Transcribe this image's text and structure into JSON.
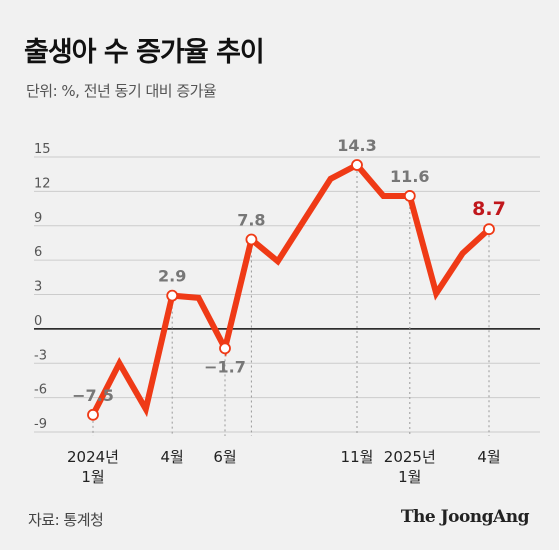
{
  "header": {
    "title": "출생아 수 증가율 추이",
    "subtitle": "단위: %, 전년 동기 대비 증가율"
  },
  "footer": {
    "source": "자료: 통계청",
    "brand": "The JoongAng"
  },
  "colors": {
    "background": "#f1f1f1",
    "line": "#ef3a16",
    "highlight_label": "#c0171c",
    "label": "#777777",
    "axis": "#111111",
    "grid": "#cccccc"
  },
  "chart_data": {
    "type": "line",
    "title": "출생아 수 증가율 추이",
    "subtitle": "단위: %, 전년 동기 대비 증가율",
    "ylim": [
      -9,
      15
    ],
    "yticks": [
      15,
      12,
      9,
      6,
      3,
      0,
      -3,
      -6,
      -9
    ],
    "ytick_labels": [
      "15",
      "12",
      "9",
      "6",
      "3",
      "0",
      "-3",
      "-6",
      "-9"
    ],
    "grid": true,
    "x": [
      "2024-01",
      "2024-02",
      "2024-03",
      "2024-04",
      "2024-05",
      "2024-06",
      "2024-07",
      "2024-08",
      "2024-09",
      "2024-10",
      "2024-11",
      "2024-12",
      "2025-01",
      "2025-02",
      "2025-03",
      "2025-04"
    ],
    "series": [
      {
        "values": [
          -7.5,
          -3.0,
          -7.0,
          2.9,
          2.7,
          -1.7,
          7.8,
          5.9,
          9.5,
          13.1,
          14.3,
          11.6,
          11.6,
          3.1,
          6.6,
          8.7
        ]
      }
    ],
    "xtick_labels": [
      {
        "index": 0,
        "lines": [
          "2024년",
          "1월"
        ]
      },
      {
        "index": 3,
        "lines": [
          "4월"
        ]
      },
      {
        "index": 5,
        "lines": [
          "6월"
        ]
      },
      {
        "index": 10,
        "lines": [
          "11월"
        ]
      },
      {
        "index": 12,
        "lines": [
          "2025년",
          "1월"
        ]
      },
      {
        "index": 15,
        "lines": [
          "4월"
        ]
      }
    ],
    "annotations": [
      {
        "index": 0,
        "text": "−7.5",
        "position": "above",
        "highlight": false
      },
      {
        "index": 3,
        "text": "2.9",
        "position": "above",
        "highlight": false
      },
      {
        "index": 5,
        "text": "−1.7",
        "position": "below",
        "highlight": false
      },
      {
        "index": 6,
        "text": "7.8",
        "position": "above",
        "highlight": false
      },
      {
        "index": 10,
        "text": "14.3",
        "position": "above",
        "highlight": false
      },
      {
        "index": 12,
        "text": "11.6",
        "position": "above",
        "highlight": false
      },
      {
        "index": 15,
        "text": "8.7",
        "position": "above",
        "highlight": true
      }
    ]
  }
}
